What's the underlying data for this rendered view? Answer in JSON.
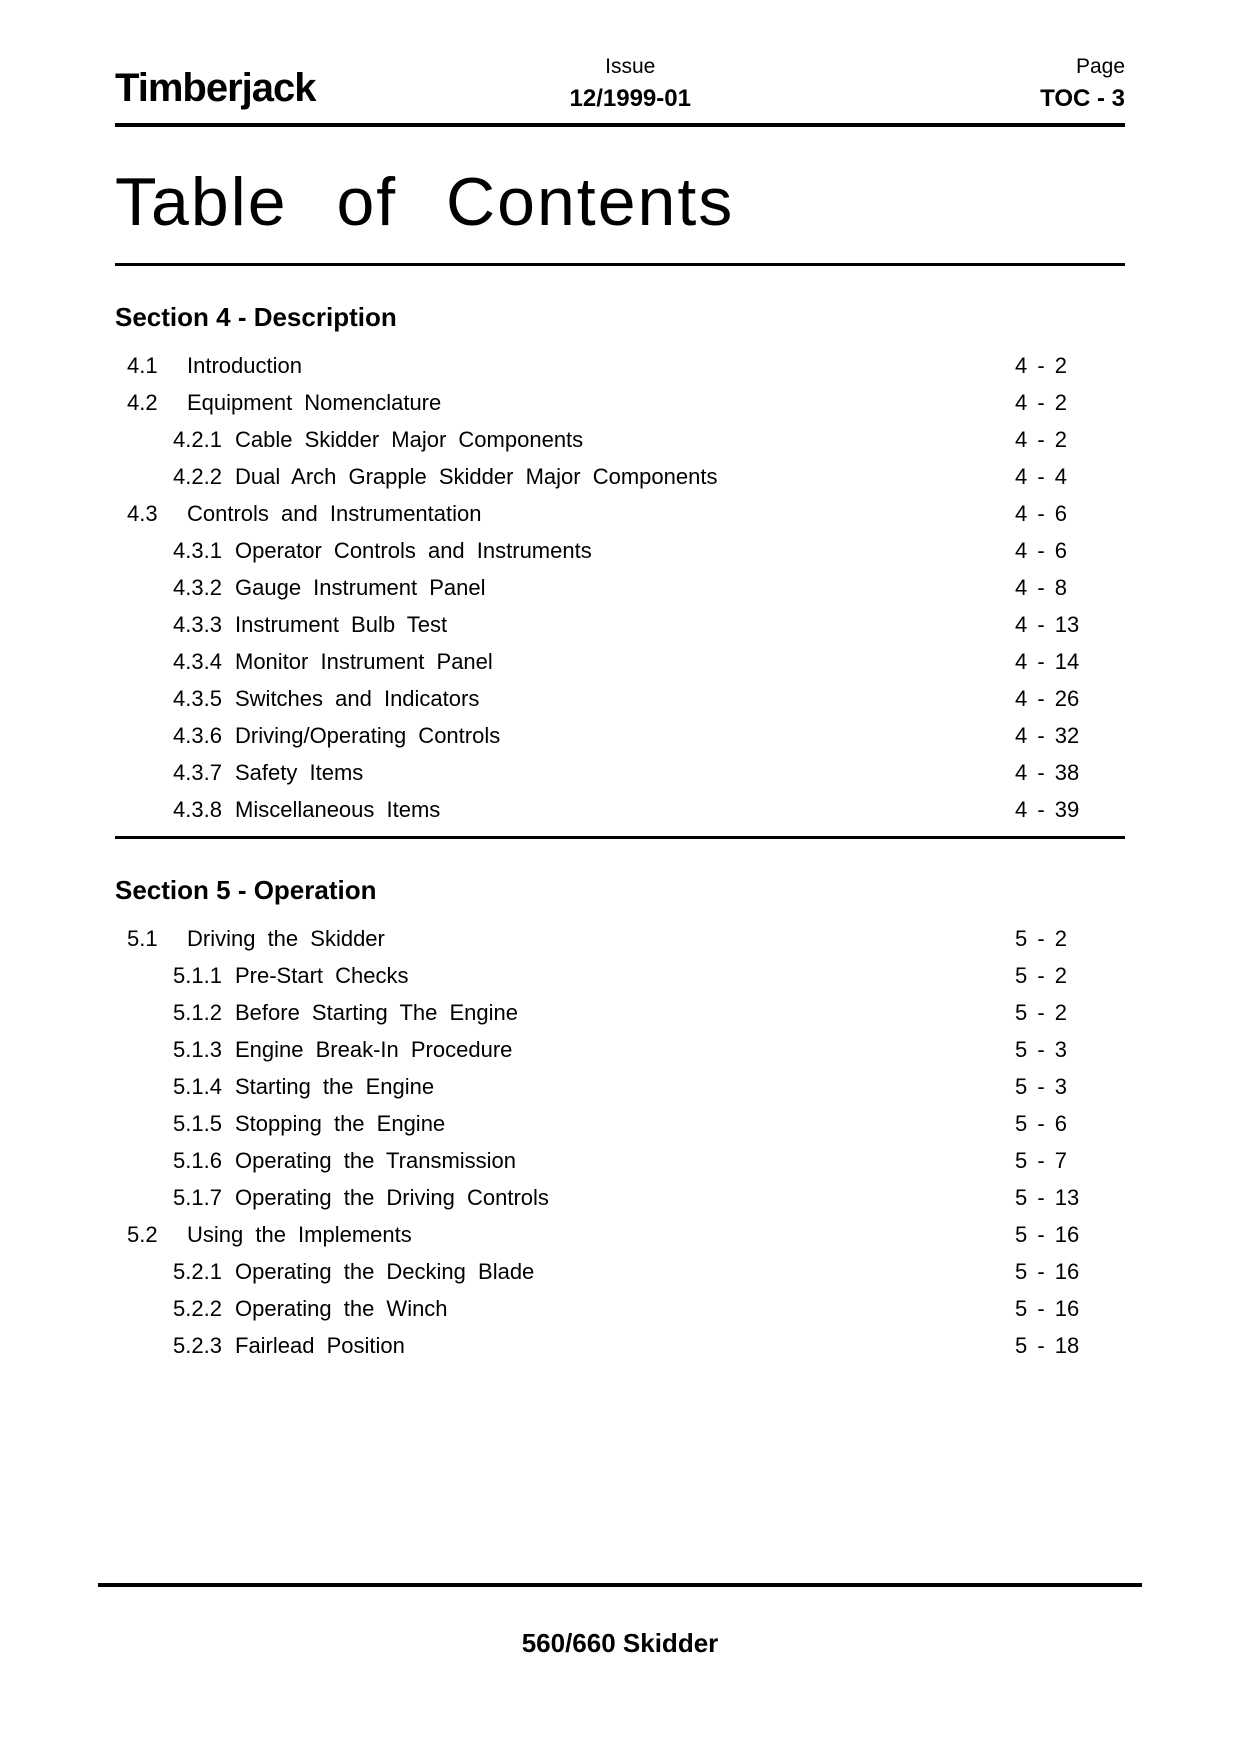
{
  "header": {
    "brand": "Timberjack",
    "issue_label": "Issue",
    "issue_value": "12/1999-01",
    "page_label": "Page",
    "page_value": "TOC - 3"
  },
  "title": "Table of Contents",
  "sections": [
    {
      "heading": "Section 4 - Description",
      "entries": [
        {
          "level": 1,
          "num": "4.1",
          "text": "Introduction",
          "page": "4 - 2"
        },
        {
          "level": 1,
          "num": "4.2",
          "text": "Equipment Nomenclature",
          "page": "4 - 2"
        },
        {
          "level": 2,
          "num": "4.2.1",
          "text": "Cable Skidder Major Components",
          "page": "4 - 2"
        },
        {
          "level": 2,
          "num": "4.2.2",
          "text": "Dual Arch Grapple Skidder Major Components",
          "page": "4 - 4"
        },
        {
          "level": 1,
          "num": "4.3",
          "text": "Controls and Instrumentation",
          "page": "4 - 6"
        },
        {
          "level": 2,
          "num": "4.3.1",
          "text": "Operator Controls and Instruments",
          "page": "4 - 6"
        },
        {
          "level": 2,
          "num": "4.3.2",
          "text": "Gauge Instrument Panel",
          "page": "4 - 8"
        },
        {
          "level": 2,
          "num": "4.3.3",
          "text": "Instrument Bulb Test",
          "page": "4 - 13"
        },
        {
          "level": 2,
          "num": "4.3.4",
          "text": "Monitor Instrument Panel",
          "page": "4 - 14"
        },
        {
          "level": 2,
          "num": "4.3.5",
          "text": "Switches and Indicators",
          "page": "4 - 26"
        },
        {
          "level": 2,
          "num": "4.3.6",
          "text": "Driving/Operating Controls",
          "page": "4 - 32"
        },
        {
          "level": 2,
          "num": "4.3.7",
          "text": "Safety Items",
          "page": "4 - 38"
        },
        {
          "level": 2,
          "num": "4.3.8",
          "text": "Miscellaneous Items",
          "page": "4 - 39"
        }
      ]
    },
    {
      "heading": "Section 5 - Operation",
      "entries": [
        {
          "level": 1,
          "num": "5.1",
          "text": "Driving the Skidder",
          "page": "5 - 2"
        },
        {
          "level": 2,
          "num": "5.1.1",
          "text": "Pre-Start Checks",
          "page": "5 - 2"
        },
        {
          "level": 2,
          "num": "5.1.2",
          "text": "Before Starting The Engine",
          "page": "5 - 2"
        },
        {
          "level": 2,
          "num": "5.1.3",
          "text": "Engine Break-In Procedure",
          "page": "5 - 3"
        },
        {
          "level": 2,
          "num": "5.1.4",
          "text": "Starting the Engine",
          "page": "5 - 3"
        },
        {
          "level": 2,
          "num": "5.1.5",
          "text": "Stopping the Engine",
          "page": "5 - 6"
        },
        {
          "level": 2,
          "num": "5.1.6",
          "text": "Operating the Transmission",
          "page": "5 - 7"
        },
        {
          "level": 2,
          "num": "5.1.7",
          "text": "Operating the Driving Controls",
          "page": "5 - 13"
        },
        {
          "level": 1,
          "num": "5.2",
          "text": "Using the Implements",
          "page": "5 - 16"
        },
        {
          "level": 2,
          "num": "5.2.1",
          "text": "Operating the Decking Blade",
          "page": "5 - 16"
        },
        {
          "level": 2,
          "num": "5.2.2",
          "text": "Operating the Winch",
          "page": "5 - 16"
        },
        {
          "level": 2,
          "num": "5.2.3",
          "text": "Fairlead Position",
          "page": "5 - 18"
        }
      ]
    }
  ],
  "footer": "560/660 Skidder"
}
